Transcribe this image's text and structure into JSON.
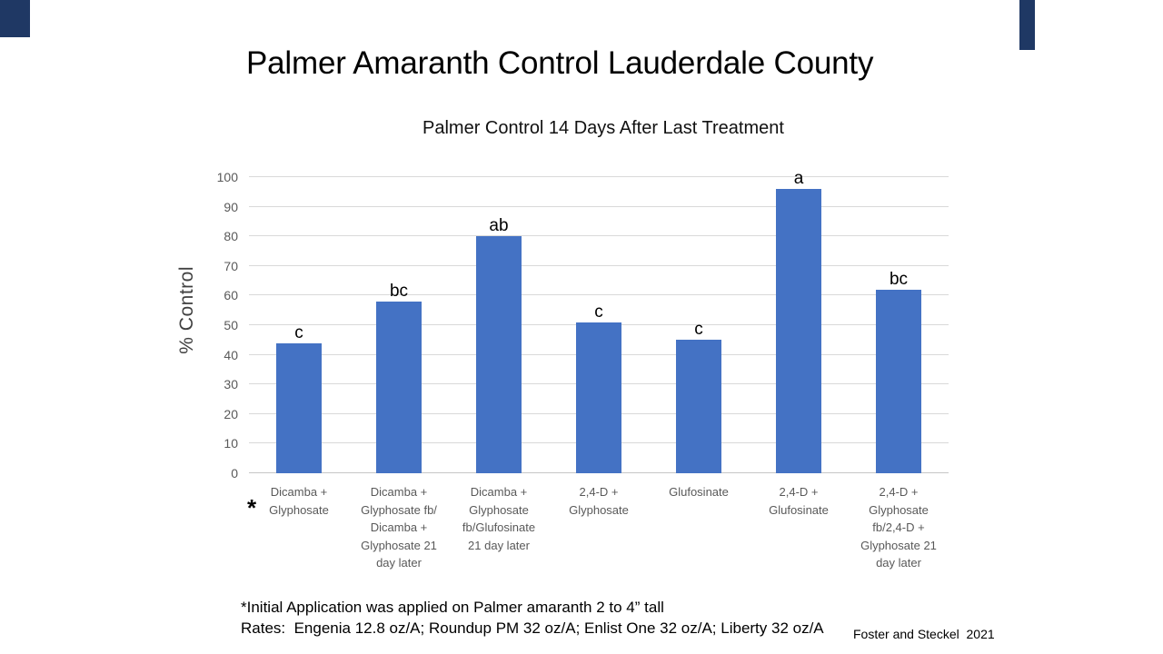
{
  "slide": {
    "title": "Palmer Amaranth Control Lauderdale County",
    "footnote": "*Initial Application was applied on Palmer amaranth 2 to 4” tall\nRates:  Engenia 12.8 oz/A; Roundup PM 32 oz/A; Enlist One 32 oz/A; Liberty 32 oz/A",
    "credit": "Foster and Steckel  2021",
    "asterisk_marker": "*",
    "accent_color": "#1F3864"
  },
  "chart_data": {
    "type": "bar",
    "title": "Palmer Control 14 Days After Last Treatment",
    "xlabel": "",
    "ylabel": "% Control",
    "ylim": [
      0,
      100
    ],
    "yticks": [
      0,
      10,
      20,
      30,
      40,
      50,
      60,
      70,
      80,
      90,
      100
    ],
    "grid": true,
    "legend": false,
    "categories": [
      "Dicamba +\nGlyphosate",
      "Dicamba +\nGlyphosate fb/\nDicamba +\nGlyphosate 21\nday later",
      "Dicamba +\nGlyphosate\nfb/Glufosinate\n21 day later",
      "2,4-D +\nGlyphosate",
      "Glufosinate",
      "2,4-D +\nGlufosinate",
      "2,4-D +\nGlyphosate\nfb/2,4-D +\nGlyphosate 21\nday later"
    ],
    "values": [
      44,
      58,
      80,
      51,
      45,
      96,
      62
    ],
    "bar_labels": [
      "c",
      "bc",
      "ab",
      "c",
      "c",
      "a",
      "bc"
    ],
    "colors": {
      "bar": "#4472C4",
      "gridline": "#D9D9D9",
      "axis_line": "#C6C6C6",
      "tick_text": "#595959",
      "category_text": "#595959",
      "letter_text": "#000000"
    }
  }
}
